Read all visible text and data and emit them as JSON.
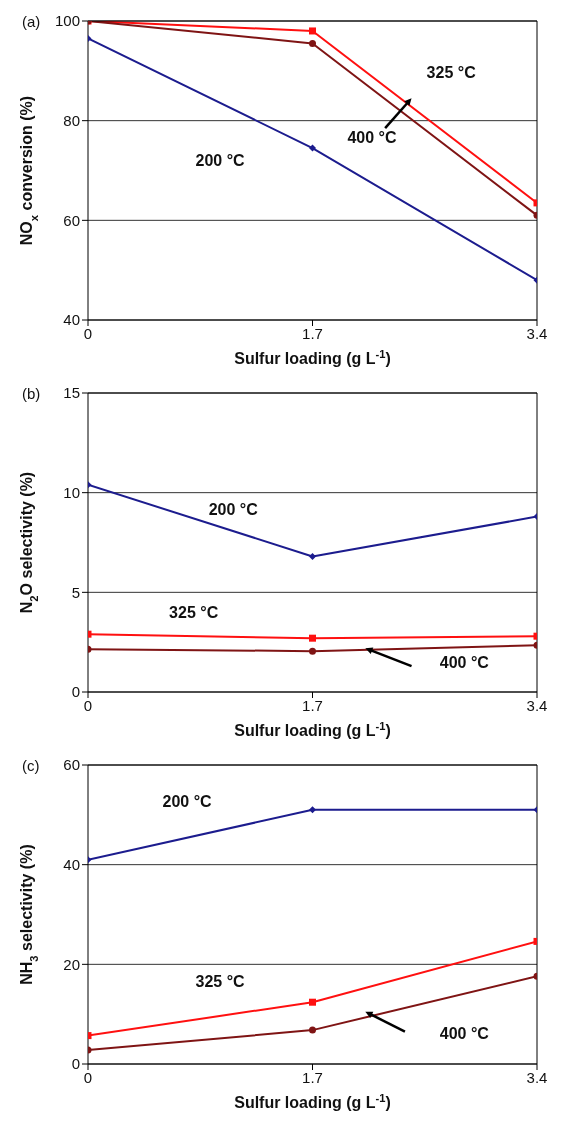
{
  "chart_data": [
    {
      "type": "line",
      "title": "(a)",
      "xlabel": "Sulfur loading (g L$^{-1}$)",
      "ylabel": "NO$_{x}$ conversion (%)",
      "x": [
        0,
        1.7,
        3.4
      ],
      "xlim": [
        0,
        3.4
      ],
      "xticks": [
        0,
        1.7,
        3.4
      ],
      "ylim": [
        40,
        100
      ],
      "yticks": [
        40,
        60,
        80,
        100
      ],
      "grid": "y",
      "series": [
        {
          "name": "200 °C",
          "color": "#1c1c8e",
          "marker": "diamond",
          "values": [
            96.5,
            74.5,
            48
          ]
        },
        {
          "name": "325 °C",
          "color": "#ff1010",
          "marker": "square",
          "values": [
            100,
            98,
            63.5
          ]
        },
        {
          "name": "400 °C",
          "color": "#7f1414",
          "marker": "circle",
          "values": [
            100,
            95.5,
            61
          ]
        }
      ]
    },
    {
      "type": "line",
      "title": "(b)",
      "xlabel": "Sulfur loading (g L$^{-1}$)",
      "ylabel": "N$_{2}$O selectivity (%)",
      "x": [
        0,
        1.7,
        3.4
      ],
      "xlim": [
        0,
        3.4
      ],
      "xticks": [
        0,
        1.7,
        3.4
      ],
      "ylim": [
        0,
        15
      ],
      "yticks": [
        0,
        5,
        10,
        15
      ],
      "grid": "y",
      "series": [
        {
          "name": "200 °C",
          "color": "#1c1c8e",
          "marker": "diamond",
          "values": [
            10.4,
            6.8,
            8.8
          ]
        },
        {
          "name": "325 °C",
          "color": "#ff1010",
          "marker": "square",
          "values": [
            2.9,
            2.7,
            2.8
          ]
        },
        {
          "name": "400 °C",
          "color": "#7f1414",
          "marker": "circle",
          "values": [
            2.15,
            2.05,
            2.35
          ]
        }
      ]
    },
    {
      "type": "line",
      "title": "(c)",
      "xlabel": "Sulfur loading (g L$^{-1}$)",
      "ylabel": "NH$_{3}$ selectivity (%)",
      "x": [
        0,
        1.7,
        3.4
      ],
      "xlim": [
        0,
        3.4
      ],
      "xticks": [
        0,
        1.7,
        3.4
      ],
      "ylim": [
        0,
        60
      ],
      "yticks": [
        0,
        20,
        40,
        60
      ],
      "grid": "y",
      "series": [
        {
          "name": "200 °C",
          "color": "#1c1c8e",
          "marker": "diamond",
          "values": [
            41,
            51,
            51
          ]
        },
        {
          "name": "325 °C",
          "color": "#ff1010",
          "marker": "square",
          "values": [
            5.7,
            12.4,
            24.6
          ]
        },
        {
          "name": "400 °C",
          "color": "#7f1414",
          "marker": "circle",
          "values": [
            2.8,
            6.8,
            17.6
          ]
        }
      ]
    }
  ]
}
